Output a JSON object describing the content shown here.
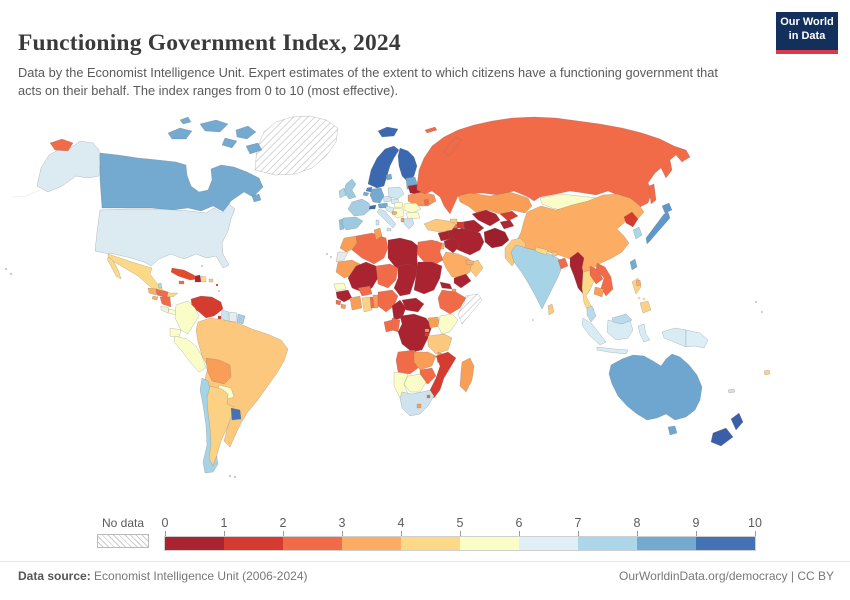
{
  "header": {
    "title": "Functioning Government Index, 2024",
    "subtitle": "Data by the Economist Intelligence Unit. Expert estimates of the extent to which citizens have a functioning government that acts on their behalf. The index ranges from 0 to 10 (most effective).",
    "logo_line1": "Our World",
    "logo_line2": "in Data",
    "logo_bg": "#12305b",
    "logo_accent": "#d93a4a"
  },
  "legend": {
    "no_data_label": "No data",
    "ticks": [
      "0",
      "1",
      "2",
      "3",
      "4",
      "5",
      "6",
      "7",
      "8",
      "9",
      "10"
    ],
    "band_colors": [
      "#a92330",
      "#d63b2f",
      "#f16b49",
      "#fcad63",
      "#fcd987",
      "#fbfdc9",
      "#e0eff5",
      "#abd7e8",
      "#74a9d0",
      "#4473b5"
    ]
  },
  "footer": {
    "datasource_label": "Data source:",
    "datasource_value": " Economist Intelligence Unit (2006-2024)",
    "link": "OurWorldinData.org/democracy | CC BY"
  },
  "chart_data": {
    "type": "choropleth_map",
    "title": "Functioning Government Index, 2024",
    "value_range": [
      0,
      10
    ],
    "legend_bins": [
      0,
      1,
      2,
      3,
      4,
      5,
      6,
      7,
      8,
      9,
      10
    ],
    "legend_position": "bottom",
    "no_data": [
      "Greenland",
      "Somalia",
      "Western Sahara"
    ],
    "countries_by_band": {
      "0-1": [
        "Haiti",
        "Belarus",
        "Libya",
        "Chad",
        "Sudan",
        "South Sudan",
        "Mali",
        "Guinea",
        "Cameroon",
        "Central African Republic",
        "DR Congo",
        "Eritrea",
        "Syria",
        "Iraq",
        "Iran",
        "Yemen",
        "Afghanistan",
        "Turkmenistan",
        "Uzbekistan",
        "Tajikistan",
        "Myanmar"
      ],
      "1-2": [
        "Venezuela",
        "Cuba",
        "Trinidad and Tobago",
        "Kyrgyzstan",
        "North Korea",
        "Burundi",
        "Mozambique",
        "Azerbaijan"
      ],
      "2-3": [
        "Russia",
        "Honduras",
        "Nicaragua",
        "Jamaica",
        "Moldova",
        "Egypt",
        "Algeria",
        "Nigeria",
        "Niger",
        "Burkina Faso",
        "Togo",
        "Sierra Leone",
        "Ethiopia",
        "Gabon",
        "Congo",
        "Angola",
        "Zimbabwe",
        "Eswatini",
        "Laos",
        "Vietnam",
        "Bangladesh",
        "Armenia"
      ],
      "3-4": [
        "Guatemala",
        "El Salvador",
        "Bolivia",
        "Morocco",
        "Tunisia",
        "Mauritania",
        "Liberia",
        "Benin",
        "Ivory Coast",
        "Uganda",
        "Rwanda",
        "Zambia",
        "Malawi",
        "Madagascar",
        "Lesotho",
        "China",
        "Kazakhstan",
        "Saudi Arabia",
        "Jordan",
        "United Arab Emirates",
        "Bosnia and Herzegovina",
        "Albania",
        "Cambodia",
        "Ukraine"
      ],
      "4-5": [
        "Mexico",
        "Dominican Republic",
        "Brazil",
        "Argentina",
        "Turkey",
        "Pakistan",
        "Nepal",
        "Bhutan",
        "Thailand",
        "Sri Lanka",
        "Philippines",
        "Fiji",
        "Georgia",
        "Oman",
        "Tanzania",
        "Ghana"
      ],
      "5-6": [
        "Colombia",
        "Ecuador",
        "Peru",
        "Paraguay",
        "Panama",
        "Costa Rica",
        "Senegal",
        "Kenya",
        "Botswana",
        "Namibia",
        "Mongolia",
        "Hungary",
        "Romania",
        "Bulgaria",
        "Serbia"
      ],
      "6-7": [
        "United States",
        "Italy",
        "Greece",
        "South Africa",
        "Czechia",
        "Slovakia",
        "Poland",
        "Croatia",
        "Israel",
        "Suriname",
        "Indonesia",
        "Papua New Guinea"
      ],
      "7-8": [
        "Chile",
        "India",
        "Malaysia",
        "Guyana",
        "South Korea",
        "United Kingdom",
        "Ireland",
        "Spain",
        "Portugal",
        "France"
      ],
      "8-9": [
        "Canada",
        "Germany",
        "Austria",
        "Belgium",
        "Denmark",
        "Estonia",
        "Latvia",
        "Lithuania",
        "Taiwan",
        "Japan",
        "Australia"
      ],
      "9-10": [
        "Iceland",
        "Norway",
        "Sweden",
        "Finland",
        "Switzerland",
        "Netherlands",
        "New Zealand",
        "Uruguay"
      ]
    }
  },
  "map": {
    "palette": {
      "canada": "#74a9d0",
      "usa": "#dcebf2",
      "alaska": "#dcebf2",
      "chukotka": "#f16b49",
      "mexico": "#fcd987",
      "guatemala": "#fcad63",
      "belize": "#abd7e8",
      "honduras": "#f16b49",
      "el_salvador": "#fcad63",
      "nicaragua": "#f16b49",
      "costa_rica": "#eef6da",
      "panama": "#fbfdc9",
      "cuba": "#e44c2c",
      "jamaica": "#f16b49",
      "haiti": "#a92330",
      "dominican_republic": "#fcd987",
      "puerto_rico": "#fcc87d",
      "trinidad": "#d63b2f",
      "venezuela": "#d63b2f",
      "colombia": "#fbfdc9",
      "guyana": "#c9e5f0",
      "suriname": "#e5eef0",
      "french_guiana": "#a6cde2",
      "ecuador": "#fbfdc9",
      "peru": "#fbfdc9",
      "brazil": "#fcc87d",
      "bolivia": "#f99e57",
      "paraguay": "#fbfdc9",
      "chile": "#a6d3e6",
      "argentina": "#fcd183",
      "uruguay": "#4473b5",
      "iceland": "#3c68af",
      "norway_sweden": "#3c68af",
      "finland": "#3c68af",
      "denmark": "#74a9d0",
      "uk": "#9ecadf",
      "ireland": "#abd7e8",
      "netherlands": "#4f86c2",
      "belgium": "#74a9d0",
      "germany": "#74a9d0",
      "france": "#a6cde2",
      "switzerland": "#3c68af",
      "austria": "#74a9d0",
      "czechia": "#cfe7f1",
      "slovakia": "#d8ecf3",
      "poland": "#cfe7f1",
      "baltics": "#74a9d0",
      "belarus": "#a92330",
      "ukraine": "#f69259",
      "moldova": "#f16b49",
      "hungary": "#fbfdc9",
      "romania": "#fbfdc9",
      "bulgaria": "#fbfdc9",
      "serbia": "#fbfdc9",
      "bosnia": "#fcad63",
      "albania": "#f99e57",
      "croatia": "#d8ecf3",
      "italy": "#cfe3ee",
      "greece": "#cfe3ee",
      "portugal": "#8fc2dc",
      "spain": "#9ecadf",
      "russia": "#f16b49",
      "kazakhstan": "#f99e57",
      "mongolia": "#fbfdc9",
      "china": "#fcad63",
      "uzbekistan": "#a92330",
      "turkmenistan": "#a92330",
      "kyrgyzstan": "#d63b2f",
      "tajikistan": "#b02634",
      "afghanistan": "#9d1f2e",
      "pakistan": "#fcc87d",
      "iran": "#a92330",
      "turkey": "#fcc87d",
      "syria": "#a92330",
      "iraq": "#a92330",
      "israel": "#cfe3ee",
      "jordan": "#fcad63",
      "saudi_arabia": "#fcad63",
      "yemen": "#a92330",
      "oman": "#fcc87d",
      "uae": "#fcad63",
      "georgia": "#fcc87d",
      "armenia": "#f16b49",
      "azerbaijan": "#d63b2f",
      "india": "#a6d3e6",
      "nepal": "#fcd987",
      "bhutan": "#fcc87d",
      "bangladesh": "#f16b49",
      "sri_lanka": "#fcc87d",
      "myanmar": "#a92330",
      "thailand": "#fcd987",
      "laos": "#f16b49",
      "vietnam": "#f16b49",
      "cambodia": "#f99e57",
      "malaysia": "#b8dcec",
      "indonesia": "#d8ecf4",
      "papua_new_guinea": "#ddeef6",
      "philippines": "#fcd185",
      "taiwan": "#74a9d0",
      "north_korea": "#d63b2f",
      "south_korea": "#abd7e8",
      "japan": "#5e98ca",
      "morocco": "#f99e57",
      "western_sahara": "#e9e9e9",
      "algeria": "#f16b49",
      "tunisia": "#f99e57",
      "libya": "#a92330",
      "egypt": "#f16b49",
      "mauritania": "#f99e57",
      "senegal": "#fbfdc9",
      "guinea": "#a92330",
      "sierra_leone": "#f16b49",
      "liberia": "#f99e57",
      "mali": "#a92330",
      "burkina_faso": "#f16b49",
      "niger": "#f16b49",
      "chad": "#a92330",
      "sudan": "#a92330",
      "eritrea": "#a92330",
      "djibouti": "#f99e57",
      "ethiopia": "#f16b49",
      "nigeria": "#f16b49",
      "benin": "#f99e57",
      "togo": "#f16b49",
      "ghana": "#fcd185",
      "ivory_coast": "#f99e57",
      "cameroon": "#a92330",
      "central_african_republic": "#a92330",
      "gabon": "#f16b49",
      "congo": "#f16b49",
      "drc": "#a92330",
      "uganda": "#f99e57",
      "kenya": "#fbfdc9",
      "rwanda": "#f99e57",
      "burundi": "#d63b2f",
      "tanzania": "#fcc87d",
      "angola": "#f16b49",
      "zambia": "#f99e57",
      "malawi": "#f99e57",
      "mozambique": "#d63b2f",
      "zimbabwe": "#f16b49",
      "botswana": "#fbfdc9",
      "namibia": "#fbfdc9",
      "south_africa": "#cfe3ee",
      "lesotho": "#f99e57",
      "eswatini": "#f16b49",
      "madagascar": "#f99e57",
      "australia": "#6fa6d0",
      "new_zealand": "#3a5fa8",
      "fiji": "#fcd185",
      "new_caledonia": "#dddddd"
    }
  }
}
